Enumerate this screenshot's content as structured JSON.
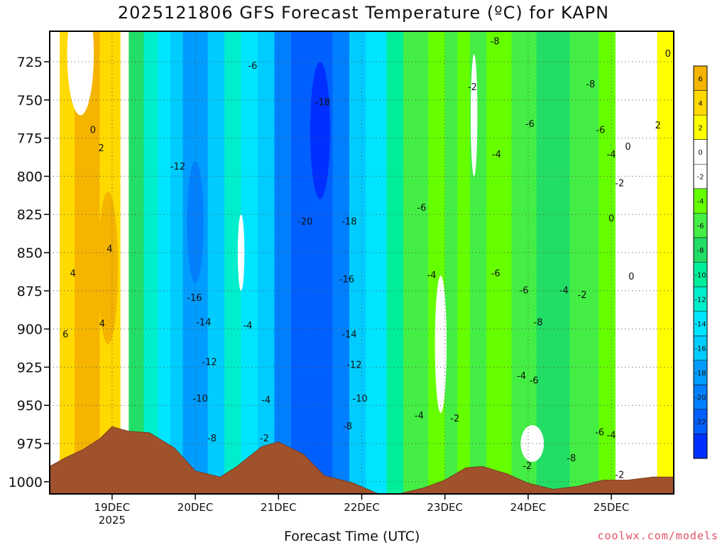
{
  "chart_data": {
    "type": "heatmap",
    "title": "2025121806 GFS Forecast Temperature (ºC) for KAPN",
    "xlabel": "Forecast Time (UTC)",
    "ylabel": "",
    "credit": "coolwx.com/models",
    "x_ticks": [
      {
        "label": "19DEC",
        "sublabel": "2025",
        "day": 19
      },
      {
        "label": "20DEC",
        "day": 20
      },
      {
        "label": "21DEC",
        "day": 21
      },
      {
        "label": "22DEC",
        "day": 22
      },
      {
        "label": "23DEC",
        "day": 23
      },
      {
        "label": "24DEC",
        "day": 24
      },
      {
        "label": "25DEC",
        "day": 25
      }
    ],
    "x_range_days": [
      18.25,
      25.75
    ],
    "y_ticks": [
      725,
      750,
      775,
      800,
      825,
      850,
      875,
      900,
      925,
      950,
      975,
      1000
    ],
    "y_range_hpa": [
      705,
      1008
    ],
    "y_reversed": true,
    "grid": true,
    "legend": "right",
    "colorbar": {
      "labels": [
        "6",
        "4",
        "2",
        "0",
        "-2",
        "-4",
        "-6",
        "-8",
        "-10",
        "-12",
        "-14",
        "-16",
        "-18",
        "-20",
        "-22"
      ],
      "colors": [
        "#f4b400",
        "#ffd900",
        "#ffff00",
        "#ffffff",
        "#ffffff",
        "#66ff00",
        "#44ee44",
        "#22dd66",
        "#00ee99",
        "#00eecc",
        "#00e5ff",
        "#00ccff",
        "#009cff",
        "#0080ff",
        "#0060ff",
        "#0030ff"
      ]
    },
    "contour_labels": [
      {
        "text": "0",
        "day": 18.77,
        "p": 770
      },
      {
        "text": "2",
        "day": 18.87,
        "p": 782
      },
      {
        "text": "4",
        "day": 18.53,
        "p": 864
      },
      {
        "text": "4",
        "day": 18.97,
        "p": 848
      },
      {
        "text": "4",
        "day": 18.88,
        "p": 897
      },
      {
        "text": "6",
        "day": 18.44,
        "p": 904
      },
      {
        "text": "-12",
        "day": 19.79,
        "p": 794
      },
      {
        "text": "-16",
        "day": 19.99,
        "p": 880
      },
      {
        "text": "-14",
        "day": 20.1,
        "p": 896
      },
      {
        "text": "-12",
        "day": 20.17,
        "p": 922
      },
      {
        "text": "-10",
        "day": 20.06,
        "p": 946
      },
      {
        "text": "-8",
        "day": 20.2,
        "p": 972
      },
      {
        "text": "-6",
        "day": 20.69,
        "p": 728
      },
      {
        "text": "-4",
        "day": 20.63,
        "p": 898
      },
      {
        "text": "-4",
        "day": 20.85,
        "p": 947
      },
      {
        "text": "-2",
        "day": 20.83,
        "p": 972
      },
      {
        "text": "-18",
        "day": 21.53,
        "p": 752
      },
      {
        "text": "-20",
        "day": 21.32,
        "p": 830
      },
      {
        "text": "-18",
        "day": 21.85,
        "p": 830
      },
      {
        "text": "-16",
        "day": 21.82,
        "p": 868
      },
      {
        "text": "-14",
        "day": 21.85,
        "p": 904
      },
      {
        "text": "-12",
        "day": 21.91,
        "p": 924
      },
      {
        "text": "-10",
        "day": 21.98,
        "p": 946
      },
      {
        "text": "-8",
        "day": 21.83,
        "p": 964
      },
      {
        "text": "-6",
        "day": 22.72,
        "p": 821
      },
      {
        "text": "-4",
        "day": 22.84,
        "p": 865
      },
      {
        "text": "-4",
        "day": 22.69,
        "p": 957
      },
      {
        "text": "-2",
        "day": 23.12,
        "p": 959
      },
      {
        "text": "-2",
        "day": 23.33,
        "p": 742
      },
      {
        "text": "-8",
        "day": 23.6,
        "p": 712
      },
      {
        "text": "-4",
        "day": 23.62,
        "p": 786
      },
      {
        "text": "-6",
        "day": 24.02,
        "p": 766
      },
      {
        "text": "-6",
        "day": 23.61,
        "p": 864
      },
      {
        "text": "-6",
        "day": 23.95,
        "p": 875
      },
      {
        "text": "-8",
        "day": 24.12,
        "p": 896
      },
      {
        "text": "-4",
        "day": 24.43,
        "p": 875
      },
      {
        "text": "-2",
        "day": 24.65,
        "p": 878
      },
      {
        "text": "-4",
        "day": 23.92,
        "p": 931
      },
      {
        "text": "-6",
        "day": 24.07,
        "p": 934
      },
      {
        "text": "-2",
        "day": 23.99,
        "p": 990
      },
      {
        "text": "-8",
        "day": 24.52,
        "p": 985
      },
      {
        "text": "-8",
        "day": 24.75,
        "p": 740
      },
      {
        "text": "-6",
        "day": 24.87,
        "p": 770
      },
      {
        "text": "-4",
        "day": 25.0,
        "p": 786
      },
      {
        "text": "-2",
        "day": 25.1,
        "p": 805
      },
      {
        "text": "0",
        "day": 25.2,
        "p": 781
      },
      {
        "text": "0",
        "day": 25.0,
        "p": 828
      },
      {
        "text": "0",
        "day": 25.24,
        "p": 866
      },
      {
        "text": "-6",
        "day": 24.86,
        "p": 968
      },
      {
        "text": "-4",
        "day": 25.0,
        "p": 970
      },
      {
        "text": "-2",
        "day": 25.1,
        "p": 996
      },
      {
        "text": "2",
        "day": 25.56,
        "p": 767
      },
      {
        "text": "0",
        "day": 25.68,
        "p": 720
      }
    ],
    "terrain_hpa": [
      [
        18.25,
        990
      ],
      [
        18.45,
        984
      ],
      [
        18.65,
        979
      ],
      [
        18.85,
        972
      ],
      [
        19.0,
        964
      ],
      [
        19.2,
        967
      ],
      [
        19.45,
        968
      ],
      [
        19.75,
        978
      ],
      [
        20.0,
        993
      ],
      [
        20.3,
        997
      ],
      [
        20.5,
        990
      ],
      [
        20.8,
        977
      ],
      [
        21.0,
        974
      ],
      [
        21.3,
        982
      ],
      [
        21.55,
        996
      ],
      [
        21.9,
        1001
      ],
      [
        22.2,
        1008
      ],
      [
        22.45,
        1008
      ],
      [
        22.75,
        1004
      ],
      [
        23.0,
        999
      ],
      [
        23.25,
        991
      ],
      [
        23.45,
        990
      ],
      [
        23.75,
        995
      ],
      [
        24.0,
        1001
      ],
      [
        24.3,
        1005
      ],
      [
        24.6,
        1003
      ],
      [
        24.9,
        999
      ],
      [
        25.2,
        999
      ],
      [
        25.5,
        997
      ],
      [
        25.75,
        997
      ]
    ]
  }
}
